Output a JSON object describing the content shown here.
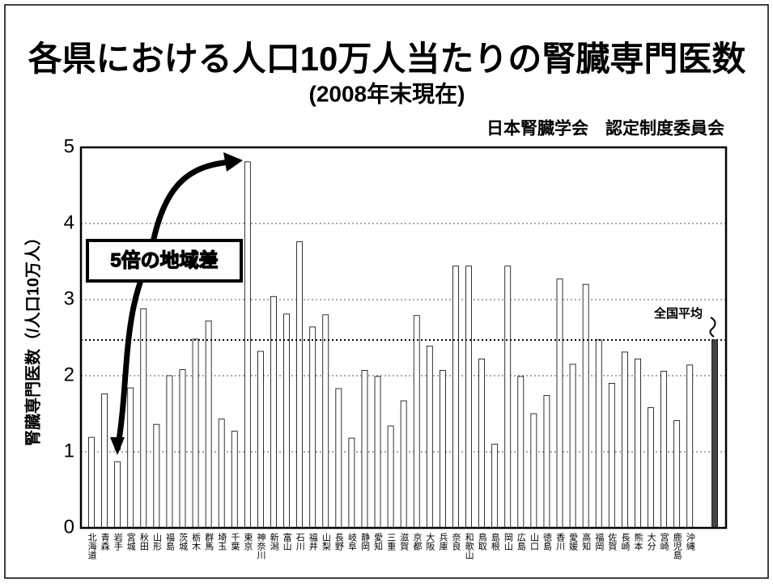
{
  "chart_data": {
    "type": "bar",
    "title": "各県における人口10万人当たりの腎臓専門医数",
    "subtitle": "(2008年末現在)",
    "source": "日本腎臓学会　認定制度委員会",
    "y_label": "腎臓専門医数（/人口10万人）",
    "annotation": "5倍の地域差",
    "categories": [
      "北海道",
      "青森",
      "岩手",
      "宮城",
      "秋田",
      "山形",
      "福島",
      "茨城",
      "栃木",
      "群馬",
      "埼玉",
      "千葉",
      "東京",
      "神奈川",
      "新潟",
      "富山",
      "石川",
      "福井",
      "山梨",
      "長野",
      "岐阜",
      "静岡",
      "愛知",
      "三重",
      "滋賀",
      "京都",
      "大阪",
      "兵庫",
      "奈良",
      "和歌山",
      "鳥取",
      "島根",
      "岡山",
      "広島",
      "山口",
      "徳島",
      "香川",
      "愛媛",
      "高知",
      "福岡",
      "佐賀",
      "長崎",
      "熊本",
      "大分",
      "宮崎",
      "鹿児島",
      "沖縄"
    ],
    "values": [
      1.19,
      1.76,
      0.87,
      1.84,
      2.88,
      1.36,
      2.0,
      2.08,
      2.48,
      2.72,
      1.43,
      1.27,
      4.81,
      2.32,
      3.04,
      2.81,
      3.76,
      2.64,
      2.8,
      1.83,
      1.18,
      2.07,
      1.99,
      1.34,
      1.67,
      2.79,
      2.39,
      2.07,
      3.44,
      3.44,
      2.22,
      1.1,
      3.44,
      1.99,
      1.5,
      1.74,
      3.27,
      2.15,
      3.2,
      2.47,
      1.9,
      2.31,
      2.22,
      1.58,
      2.06,
      1.41,
      2.14
    ],
    "color": "#ffffff",
    "average": {
      "label": "全国平均",
      "value": 2.47,
      "color": "#444444"
    },
    "ylim": [
      0,
      5
    ],
    "yticks": [
      0,
      1,
      2,
      3,
      4,
      5
    ],
    "grid": true
  }
}
